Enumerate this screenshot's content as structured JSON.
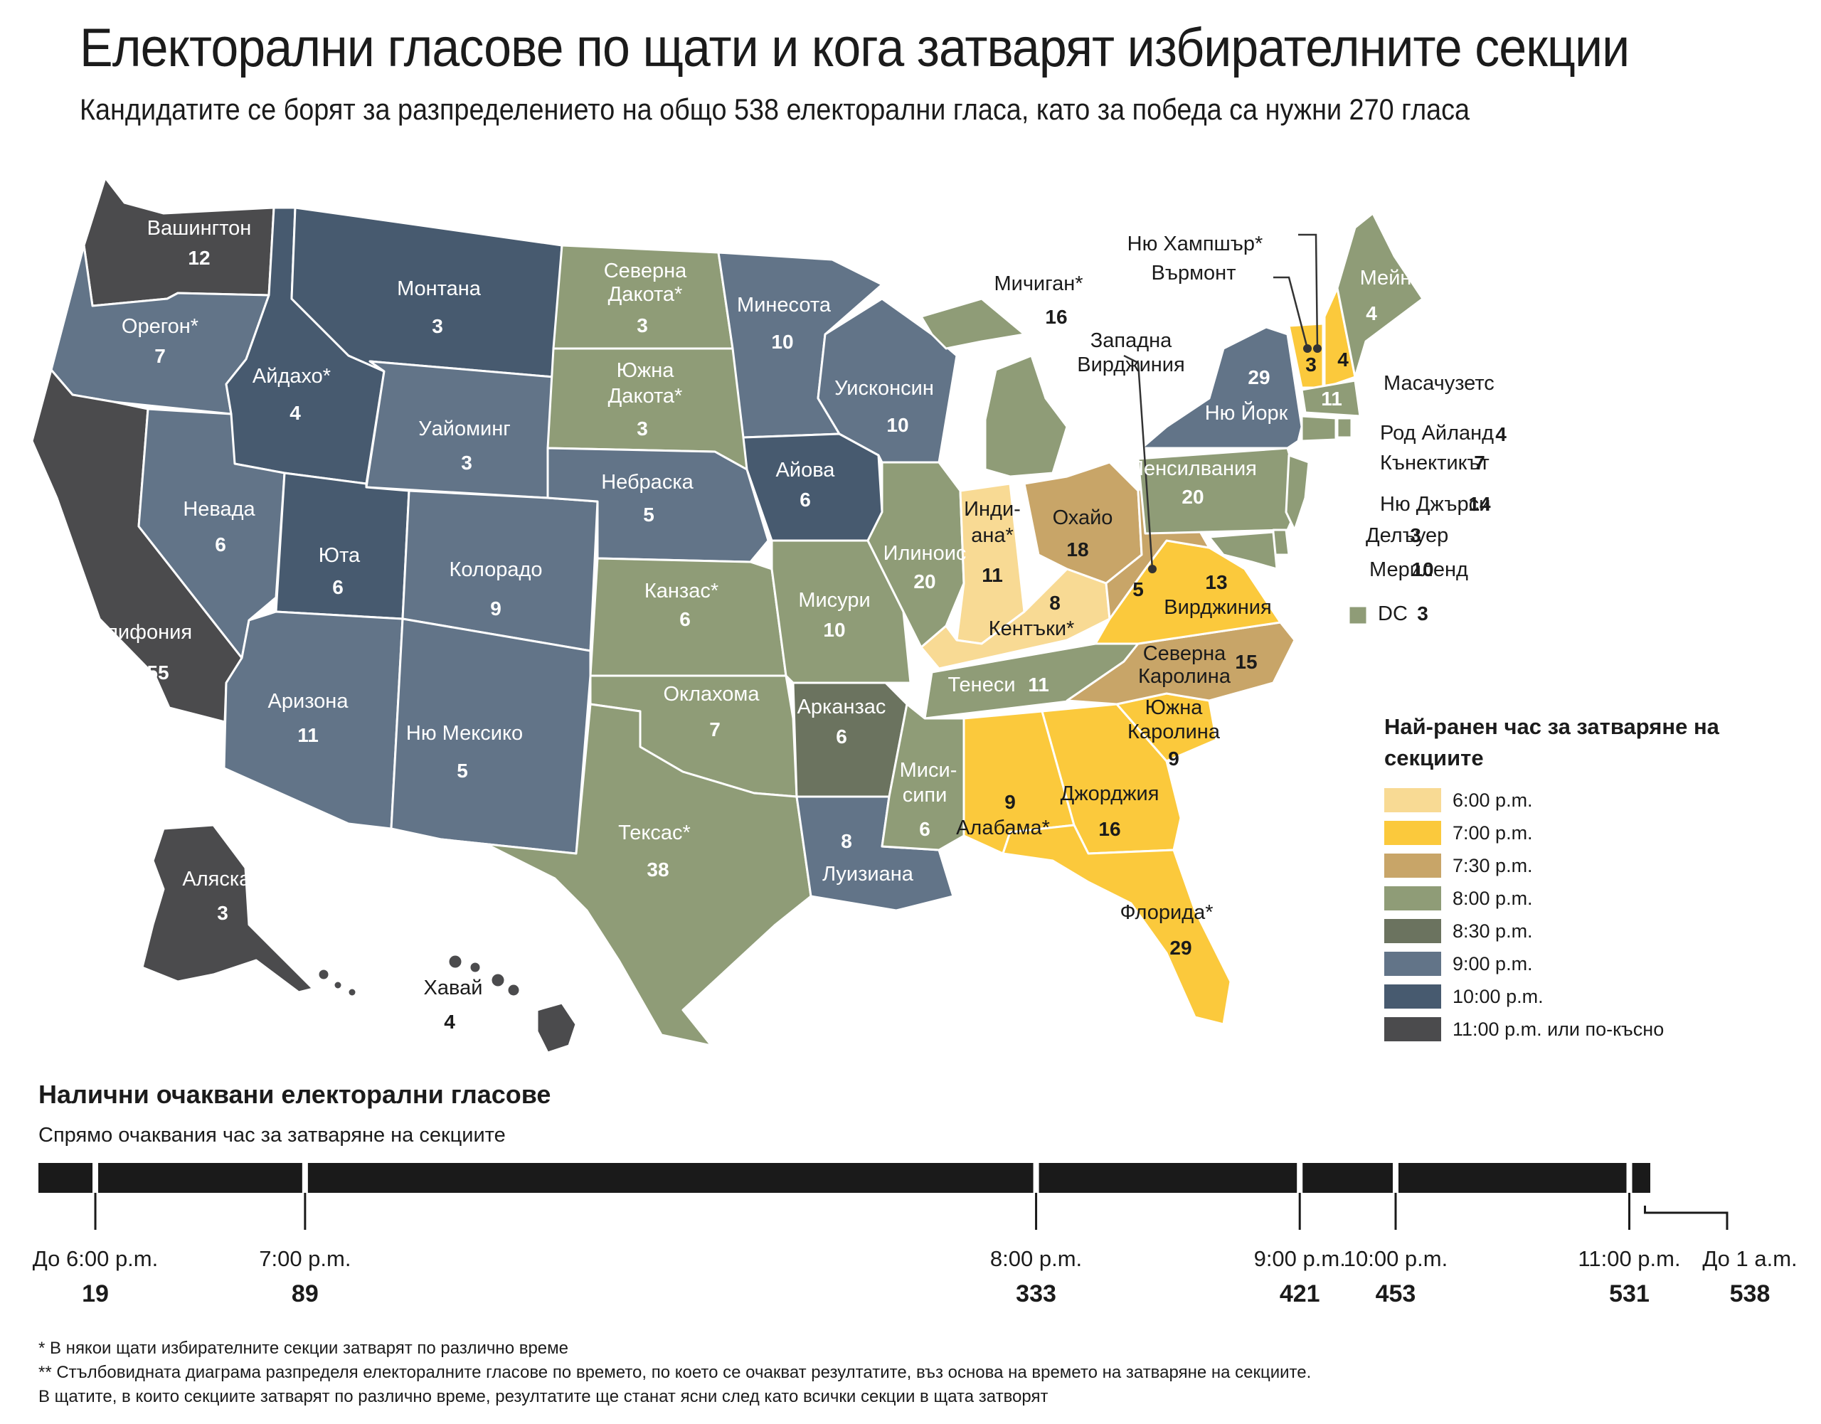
{
  "header": {
    "title": "Електорални гласове по щати и кога затварят избирателните секции",
    "subtitle": "Кандидатите се борят за разпределението на общо 538 електорални гласа, като за победа са нужни 270 гласа"
  },
  "colors": {
    "t600": "#f8da94",
    "t700": "#fbc93c",
    "t730": "#c8a568",
    "t800": "#8f9c77",
    "t830": "#6b735f",
    "t900": "#627488",
    "t1000": "#475a6f",
    "t1100": "#4b4b4d"
  },
  "map": {
    "states": [
      {
        "id": "wa",
        "name": "Вашингтон",
        "votes": "12",
        "closing": "t1100"
      },
      {
        "id": "or",
        "name": "Орегон*",
        "votes": "7",
        "closing": "t900"
      },
      {
        "id": "ca",
        "name": "Калифония",
        "votes": "55",
        "closing": "t1100"
      },
      {
        "id": "id",
        "name": "Айдахо*",
        "votes": "4",
        "closing": "t1000"
      },
      {
        "id": "nv",
        "name": "Невада",
        "votes": "6",
        "closing": "t900"
      },
      {
        "id": "mt",
        "name": "Монтана",
        "votes": "3",
        "closing": "t1000"
      },
      {
        "id": "wy",
        "name": "Уайоминг",
        "votes": "3",
        "closing": "t900"
      },
      {
        "id": "ut",
        "name": "Юта",
        "votes": "6",
        "closing": "t1000"
      },
      {
        "id": "co",
        "name": "Колорадо",
        "votes": "9",
        "closing": "t900"
      },
      {
        "id": "az",
        "name": "Аризона",
        "votes": "11",
        "closing": "t900"
      },
      {
        "id": "nm",
        "name": "Ню Мексико",
        "votes": "5",
        "closing": "t900"
      },
      {
        "id": "nd",
        "name": "Северна Дакота*",
        "votes": "3",
        "closing": "t800"
      },
      {
        "id": "sd",
        "name": "Южна Дакота*",
        "votes": "3",
        "closing": "t800"
      },
      {
        "id": "ne",
        "name": "Небраска",
        "votes": "5",
        "closing": "t900"
      },
      {
        "id": "ks",
        "name": "Канзас*",
        "votes": "6",
        "closing": "t800"
      },
      {
        "id": "ok",
        "name": "Оклахома",
        "votes": "7",
        "closing": "t800"
      },
      {
        "id": "tx",
        "name": "Тексас*",
        "votes": "38",
        "closing": "t800"
      },
      {
        "id": "mn",
        "name": "Минесота",
        "votes": "10",
        "closing": "t900"
      },
      {
        "id": "ia",
        "name": "Айова",
        "votes": "6",
        "closing": "t1000"
      },
      {
        "id": "mo",
        "name": "Мисури",
        "votes": "10",
        "closing": "t800"
      },
      {
        "id": "ar",
        "name": "Арканзас",
        "votes": "6",
        "closing": "t830"
      },
      {
        "id": "la",
        "name": "Луизиана",
        "votes": "8",
        "closing": "t900"
      },
      {
        "id": "wi",
        "name": "Уисконсин",
        "votes": "10",
        "closing": "t900"
      },
      {
        "id": "il",
        "name": "Илиноис",
        "votes": "20",
        "closing": "t800"
      },
      {
        "id": "mi",
        "name": "Мичиган*",
        "votes": "16",
        "closing": "t800"
      },
      {
        "id": "in",
        "name": "Индиана*",
        "votes": "11",
        "closing": "t600"
      },
      {
        "id": "oh",
        "name": "Охайо",
        "votes": "18",
        "closing": "t730"
      },
      {
        "id": "ky",
        "name": "Кентъки*",
        "votes": "8",
        "closing": "t600"
      },
      {
        "id": "tn",
        "name": "Тенеси",
        "votes": "11",
        "closing": "t800"
      },
      {
        "id": "ms",
        "name": "Миси-сипи",
        "votes": "6",
        "closing": "t800"
      },
      {
        "id": "al",
        "name": "Алабама*",
        "votes": "9",
        "closing": "t700"
      },
      {
        "id": "ga",
        "name": "Джорджия",
        "votes": "16",
        "closing": "t700"
      },
      {
        "id": "fl",
        "name": "Флорида*",
        "votes": "29",
        "closing": "t700"
      },
      {
        "id": "sc",
        "name": "Южна Каролина",
        "votes": "9",
        "closing": "t700"
      },
      {
        "id": "nc",
        "name": "Северна Каролина",
        "votes": "15",
        "closing": "t730"
      },
      {
        "id": "va",
        "name": "Вирджиния",
        "votes": "13",
        "closing": "t700"
      },
      {
        "id": "wv",
        "name": "Западна Вирджиния",
        "votes": "5",
        "closing": "t730"
      },
      {
        "id": "pa",
        "name": "Пенсилвания",
        "votes": "20",
        "closing": "t800"
      },
      {
        "id": "ny",
        "name": "Ню Йорк",
        "votes": "29",
        "closing": "t900"
      },
      {
        "id": "vt",
        "name": "Върмонт",
        "votes": "3",
        "closing": "t700"
      },
      {
        "id": "nh",
        "name": "Ню Хампшър*",
        "votes": "4",
        "closing": "t700"
      },
      {
        "id": "me",
        "name": "Мейн",
        "votes": "4",
        "closing": "t800"
      },
      {
        "id": "ma",
        "name": "Масачузетс",
        "votes": "11",
        "closing": "t800"
      },
      {
        "id": "ri",
        "name": "Род Айланд",
        "votes": "4",
        "closing": "t800"
      },
      {
        "id": "ct",
        "name": "Кънектикът",
        "votes": "7",
        "closing": "t800"
      },
      {
        "id": "nj",
        "name": "Ню Джърси",
        "votes": "14",
        "closing": "t800"
      },
      {
        "id": "de",
        "name": "Делъуер",
        "votes": "3",
        "closing": "t800"
      },
      {
        "id": "md",
        "name": "Мериленд",
        "votes": "10",
        "closing": "t800"
      },
      {
        "id": "dc",
        "name": "DC",
        "votes": "3",
        "closing": "t800"
      },
      {
        "id": "ak",
        "name": "Аляска*",
        "votes": "3",
        "closing": "t1100"
      },
      {
        "id": "hi",
        "name": "Хавай",
        "votes": "4",
        "closing": "t1100"
      }
    ]
  },
  "legend": {
    "title": "Най-ранен час за затваряне на секциите",
    "items": [
      {
        "label": "6:00 p.m.",
        "color": "#f8da94"
      },
      {
        "label": "7:00 p.m.",
        "color": "#fbc93c"
      },
      {
        "label": "7:30 p.m.",
        "color": "#c8a568"
      },
      {
        "label": "8:00 p.m.",
        "color": "#8f9c77"
      },
      {
        "label": "8:30 p.m.",
        "color": "#6b735f"
      },
      {
        "label": "9:00 p.m.",
        "color": "#627488"
      },
      {
        "label": "10:00 p.m.",
        "color": "#475a6f"
      },
      {
        "label": "11:00 p.m. или по-късно",
        "color": "#4b4b4d"
      }
    ]
  },
  "timeline": {
    "title": "Налични очаквани електорални гласове",
    "subtitle": "Спрямо очаквания час за затваряне на секциите",
    "total": 538,
    "ticks": [
      {
        "label": "До 6:00 p.m.",
        "value": "19"
      },
      {
        "label": "7:00 p.m.",
        "value": "89"
      },
      {
        "label": "8:00 p.m.",
        "value": "333"
      },
      {
        "label": "9:00 p.m.",
        "value": "421"
      },
      {
        "label": "10:00 p.m.",
        "value": "453"
      },
      {
        "label": "11:00 p.m.",
        "value": "531"
      },
      {
        "label": "До 1 a.m.",
        "value": "538"
      }
    ]
  },
  "footnotes": [
    "* В някои щати избирателните секции затварят по различно време",
    "** Стълбовидната диаграма разпределя електоралните гласове по времето, по което се очакват резултатите, въз основа на времето на затваряне на секциите.",
    "В щатите, в които секциите затварят по различно време, резултатите ще станат ясни след като всички секции в щата затворят"
  ]
}
